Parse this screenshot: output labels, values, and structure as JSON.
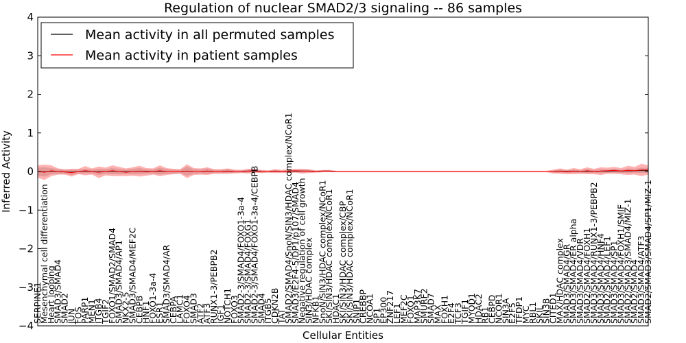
{
  "chart_data": {
    "type": "line",
    "title": "Regulation of nuclear SMAD2/3 signaling -- 86 samples",
    "xlabel": "Cellular Entities",
    "ylabel": "Inferred Activity",
    "ylim": [
      -4,
      4
    ],
    "yticks": [
      4,
      3,
      2,
      1,
      0,
      -1,
      -2,
      -3,
      -4
    ],
    "ytick_labels": [
      "4",
      "3",
      "2",
      "1",
      "0",
      "−1",
      "−2",
      "−3",
      "−4"
    ],
    "legend": {
      "placement": "top-left",
      "entries": [
        {
          "label": "Mean activity in all permuted samples",
          "color": "#000000"
        },
        {
          "label": "Mean activity in patient samples",
          "color": "#ff0000"
        }
      ]
    },
    "categories": [
      "SERPINE1",
      "Mesenchymal cell differentiation",
      "Heart looping",
      "SMAD3/SMAD4",
      "SMAD2",
      "JUN",
      "FOS",
      "PARP1",
      "MEN1",
      "ITGB4",
      "TGIF2",
      "FOXO1/SMAD2/SMAD4",
      "SMAD3/SMAD4/AP1",
      "NKX2-5",
      "SMAD3/SMAD4/MEF2C",
      "CEBPB",
      "HNF1",
      "FOXO1-3a-4",
      "ESR1",
      "SMAD3/SMAD4/AR",
      "CEBPA",
      "LAMC1",
      "FOXO4",
      "SMAD3",
      "ATF2",
      "ATF3",
      "RUNX1-3/PEBPB2",
      "IGF1",
      "NOTCH1",
      "FOXO3",
      "SMAD2-3/SMAD4/FOXO1-3a-4",
      "SMAD2-3/SMAD4/FOXG1",
      "SMAD2-3/SMAD4/FOXO1-3a-4/CEBPB",
      "SMAD4",
      "ITGB5",
      "CDKN2B",
      "TAT",
      "SMAD2/SMAD4/SnoN/SIN3/HDAC complex/NCoR1",
      "SMAD3/E2F4-5/DP1/p107/SMAD4",
      "Negative regulation of cell growth",
      "SIN3/HDAC complex",
      "NFKB1",
      "SnoN/SIN3/HDAC complex/NCoR1",
      "SKI/SIN3/HDAC complex/NCoR1",
      "HDAC1",
      "SKI/SIN3/HDAC complex/CBP",
      "SKI/SIN3/HDAC complex/NCoR1",
      "SNIP1",
      "CREBBP",
      "NCOA1",
      "SP1",
      "EP300",
      "ZNF217",
      "LEF1",
      "MEF2C",
      "FOXO1",
      "MAP3K7",
      "SMURF2",
      "SMAD7",
      "MAX",
      "FOXH1",
      "E2F4",
      "TCF3",
      "TGIF1",
      "MYOD1",
      "HDAC2",
      "RB1",
      "CEBPD",
      "NCOR1",
      "SIN3A",
      "E2F5",
      "TFDP1",
      "MYC",
      "RBL1",
      "SKIL",
      "SIN3B",
      "CITED1",
      "MAX/HDAC complex",
      "SMAD3/SMAD4/GR",
      "SMAD3/SMAD4/ER alpha",
      "SMAD3/SMAD4/VDR",
      "SMAD2/SMAD4/FOXH1",
      "SMAD3/SMAD4/RUNX1-3/PEBPB2",
      "SMAD3/SMAD4/HNF4",
      "SMAD2/SMAD4/LEF1",
      "SMAD3/SMAD4/SP1",
      "SMAD3/SMAD4/FOXH1/SMIF",
      "SMAD2/SMAD3/SMAD4/MIZ-1",
      "SMAD2/SMAD4",
      "SMAD3/SMAD4/ATF3",
      "SMAD2/SMAD3/SMAD4/SP1/MIZ-1"
    ],
    "series": [
      {
        "name": "Mean activity in all permuted samples",
        "color": "#000000",
        "values": [
          0.0,
          -0.01,
          0.01,
          0.0,
          -0.01,
          -0.02,
          0.0,
          0.01,
          0.0,
          -0.01,
          0.0,
          0.01,
          0.0,
          -0.01,
          0.0,
          0.01,
          0.0,
          0.0,
          0.01,
          0.0,
          0.0,
          0.0,
          0.01,
          0.0,
          0.0,
          0.01,
          0.0,
          0.0,
          0.01,
          0.0,
          0.0,
          0.01,
          0.01,
          0.0,
          0.0,
          0.01,
          0.0,
          0.01,
          0.01,
          0.01,
          0.01,
          0.0,
          0.01,
          0.01,
          0.0,
          0.0,
          0.0,
          0.0,
          0.0,
          0.0,
          0.0,
          0.0,
          0.0,
          0.0,
          0.0,
          0.0,
          0.0,
          0.0,
          0.0,
          0.0,
          0.0,
          0.0,
          0.0,
          0.0,
          0.0,
          0.0,
          0.0,
          0.0,
          0.0,
          0.0,
          0.0,
          0.0,
          0.0,
          0.0,
          0.0,
          0.0,
          0.0,
          0.01,
          0.0,
          0.01,
          0.0,
          0.01,
          0.0,
          0.01,
          0.01,
          0.02,
          0.01,
          0.02,
          0.02,
          0.03,
          0.03
        ]
      },
      {
        "name": "Mean activity in patient samples",
        "color": "#ff0000",
        "values": [
          0.0,
          -0.02,
          0.02,
          0.0,
          -0.01,
          -0.03,
          0.0,
          0.02,
          0.0,
          -0.02,
          0.0,
          0.02,
          0.0,
          -0.02,
          0.0,
          0.01,
          -0.01,
          0.0,
          0.02,
          0.0,
          0.0,
          0.0,
          0.01,
          0.0,
          0.0,
          0.01,
          0.0,
          0.0,
          0.01,
          0.0,
          0.0,
          0.01,
          0.02,
          0.0,
          0.0,
          0.01,
          0.0,
          0.01,
          0.02,
          0.01,
          0.01,
          0.0,
          0.01,
          0.01,
          0.0,
          0.0,
          0.0,
          0.0,
          0.0,
          0.0,
          0.0,
          0.0,
          0.0,
          0.0,
          0.0,
          0.0,
          0.0,
          0.0,
          0.0,
          0.0,
          0.0,
          0.0,
          0.0,
          0.0,
          0.0,
          0.0,
          0.0,
          0.0,
          0.0,
          0.0,
          0.0,
          0.0,
          0.0,
          0.0,
          0.0,
          0.0,
          0.0,
          0.01,
          -0.01,
          0.01,
          0.0,
          0.02,
          0.0,
          0.01,
          0.02,
          0.03,
          0.01,
          0.03,
          0.02,
          0.04,
          0.04
        ]
      }
    ],
    "permuted_spread": [
      0.1,
      0.12,
      0.08,
      0.06,
      0.05,
      0.07,
      0.05,
      0.06,
      0.05,
      0.08,
      0.06,
      0.08,
      0.07,
      0.06,
      0.07,
      0.08,
      0.06,
      0.05,
      0.09,
      0.06,
      0.05,
      0.04,
      0.12,
      0.06,
      0.05,
      0.07,
      0.04,
      0.04,
      0.05,
      0.03,
      0.03,
      0.04,
      0.03,
      0.03,
      0.02,
      0.03,
      0.02,
      0.03,
      0.03,
      0.04,
      0.03,
      0.02,
      0.02,
      0.02,
      0.01,
      0.01,
      0.01,
      0.01,
      0.01,
      0.01,
      0.01,
      0.01,
      0.01,
      0.01,
      0.01,
      0.01,
      0.01,
      0.01,
      0.01,
      0.01,
      0.01,
      0.01,
      0.01,
      0.01,
      0.01,
      0.01,
      0.01,
      0.01,
      0.01,
      0.01,
      0.01,
      0.01,
      0.01,
      0.01,
      0.01,
      0.01,
      0.03,
      0.04,
      0.03,
      0.04,
      0.03,
      0.05,
      0.04,
      0.05,
      0.04,
      0.05,
      0.04,
      0.06,
      0.05,
      0.07,
      0.06
    ],
    "patient_spread": [
      0.16,
      0.2,
      0.14,
      0.08,
      0.07,
      0.1,
      0.07,
      0.12,
      0.08,
      0.15,
      0.1,
      0.14,
      0.12,
      0.1,
      0.11,
      0.14,
      0.1,
      0.08,
      0.14,
      0.09,
      0.07,
      0.06,
      0.18,
      0.09,
      0.08,
      0.1,
      0.06,
      0.06,
      0.07,
      0.05,
      0.04,
      0.06,
      0.05,
      0.04,
      0.03,
      0.05,
      0.04,
      0.05,
      0.05,
      0.06,
      0.05,
      0.03,
      0.03,
      0.03,
      0.02,
      0.02,
      0.02,
      0.02,
      0.02,
      0.02,
      0.02,
      0.02,
      0.02,
      0.02,
      0.02,
      0.02,
      0.02,
      0.02,
      0.02,
      0.02,
      0.02,
      0.02,
      0.02,
      0.02,
      0.02,
      0.02,
      0.02,
      0.02,
      0.02,
      0.02,
      0.02,
      0.02,
      0.02,
      0.02,
      0.02,
      0.02,
      0.05,
      0.07,
      0.06,
      0.08,
      0.06,
      0.09,
      0.07,
      0.1,
      0.08,
      0.09,
      0.08,
      0.12,
      0.1,
      0.16,
      0.12
    ]
  }
}
